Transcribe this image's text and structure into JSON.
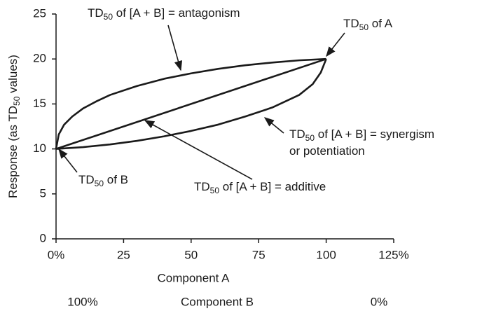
{
  "chart_data": {
    "type": "line",
    "y_label": [
      "Response (as ",
      "TD",
      "50",
      " values)"
    ],
    "x_label_a": "Component A",
    "x_label_b": "Component B",
    "b_left": "100%",
    "b_right": "0%",
    "xlim": [
      0,
      125
    ],
    "xticks": [
      {
        "value": 0,
        "label": "0%"
      },
      25,
      50,
      75,
      100,
      {
        "value": 125,
        "label": "125%"
      }
    ],
    "ylim": [
      0,
      25
    ],
    "yticks": [
      0,
      5,
      10,
      15,
      20,
      25
    ],
    "series": [
      {
        "color": "#1a1a1a",
        "x": [
          0,
          1,
          3,
          6,
          10,
          15,
          20,
          30,
          40,
          50,
          60,
          70,
          80,
          90,
          100
        ],
        "values": [
          10,
          11.6,
          12.7,
          13.6,
          14.5,
          15.3,
          16,
          17,
          17.8,
          18.4,
          18.9,
          19.3,
          19.6,
          19.85,
          20
        ]
      },
      {
        "color": "#1a1a1a",
        "x": [
          0,
          100
        ],
        "values": [
          10,
          20
        ]
      },
      {
        "color": "#1a1a1a",
        "x": [
          0,
          10,
          20,
          30,
          40,
          50,
          60,
          70,
          80,
          90,
          95,
          98,
          100
        ],
        "values": [
          10,
          10.2,
          10.5,
          10.9,
          11.4,
          12,
          12.7,
          13.6,
          14.6,
          16,
          17.2,
          18.5,
          20
        ]
      }
    ],
    "annotations": [
      {
        "parts": [
          "TD",
          "50",
          " of [A + B] = antagonism"
        ]
      },
      {
        "parts": [
          "TD",
          "50",
          " of A"
        ]
      },
      {
        "parts": [
          "TD",
          "50",
          " of [A + B] = synergism"
        ]
      },
      {
        "parts": [
          "or potentiation"
        ]
      },
      {
        "parts": [
          "TD",
          "50",
          " of B"
        ]
      },
      {
        "parts": [
          "TD",
          "50",
          " of [A + B] = additive"
        ]
      }
    ]
  }
}
